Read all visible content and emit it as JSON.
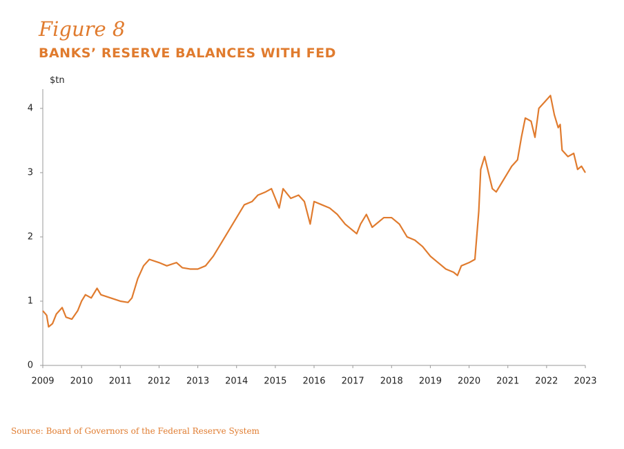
{
  "chart_data": {
    "type": "line",
    "title": "Figure 8",
    "subtitle": "BANKS’ RESERVE BALANCES WITH FED",
    "y_label": "$tn",
    "source": "Source: Board of Governors of the Federal Reserve System",
    "xlim": [
      2009,
      2023
    ],
    "xticks": [
      2009,
      2010,
      2011,
      2012,
      2013,
      2014,
      2015,
      2016,
      2017,
      2018,
      2019,
      2020,
      2021,
      2022,
      2023
    ],
    "ylim": [
      0,
      4.3
    ],
    "yticks": [
      0,
      1,
      2,
      3,
      4
    ],
    "grid": false,
    "series": [
      {
        "name": "Reserve balances",
        "color": "#e07b2e",
        "x": [
          2009.0,
          2009.1,
          2009.15,
          2009.25,
          2009.35,
          2009.5,
          2009.6,
          2009.75,
          2009.9,
          2010.0,
          2010.1,
          2010.25,
          2010.4,
          2010.5,
          2010.75,
          2011.0,
          2011.2,
          2011.3,
          2011.45,
          2011.6,
          2011.75,
          2012.0,
          2012.2,
          2012.45,
          2012.6,
          2012.8,
          2013.0,
          2013.2,
          2013.4,
          2013.6,
          2013.8,
          2014.0,
          2014.2,
          2014.4,
          2014.55,
          2014.75,
          2014.9,
          2015.0,
          2015.1,
          2015.2,
          2015.4,
          2015.6,
          2015.75,
          2015.9,
          2016.0,
          2016.2,
          2016.4,
          2016.6,
          2016.8,
          2017.0,
          2017.1,
          2017.2,
          2017.35,
          2017.5,
          2017.6,
          2017.8,
          2018.0,
          2018.2,
          2018.4,
          2018.6,
          2018.8,
          2019.0,
          2019.2,
          2019.4,
          2019.6,
          2019.7,
          2019.8,
          2020.0,
          2020.15,
          2020.25,
          2020.3,
          2020.4,
          2020.5,
          2020.6,
          2020.7,
          2020.85,
          2021.0,
          2021.1,
          2021.25,
          2021.35,
          2021.45,
          2021.6,
          2021.7,
          2021.8,
          2021.95,
          2022.1,
          2022.2,
          2022.3,
          2022.35,
          2022.4,
          2022.55,
          2022.7,
          2022.8,
          2022.9,
          2023.0
        ],
        "values": [
          0.85,
          0.78,
          0.6,
          0.65,
          0.8,
          0.9,
          0.75,
          0.72,
          0.85,
          1.0,
          1.1,
          1.05,
          1.2,
          1.1,
          1.05,
          1.0,
          0.98,
          1.05,
          1.35,
          1.55,
          1.65,
          1.6,
          1.55,
          1.6,
          1.52,
          1.5,
          1.5,
          1.55,
          1.7,
          1.9,
          2.1,
          2.3,
          2.5,
          2.55,
          2.65,
          2.7,
          2.75,
          2.6,
          2.45,
          2.75,
          2.6,
          2.65,
          2.55,
          2.2,
          2.55,
          2.5,
          2.45,
          2.35,
          2.2,
          2.1,
          2.05,
          2.2,
          2.35,
          2.15,
          2.2,
          2.3,
          2.3,
          2.2,
          2.0,
          1.95,
          1.85,
          1.7,
          1.6,
          1.5,
          1.45,
          1.4,
          1.55,
          1.6,
          1.65,
          2.4,
          3.05,
          3.25,
          3.0,
          2.75,
          2.7,
          2.85,
          3.0,
          3.1,
          3.2,
          3.55,
          3.85,
          3.8,
          3.55,
          4.0,
          4.1,
          4.2,
          3.9,
          3.7,
          3.75,
          3.35,
          3.25,
          3.3,
          3.05,
          3.1,
          3.0
        ]
      }
    ]
  }
}
